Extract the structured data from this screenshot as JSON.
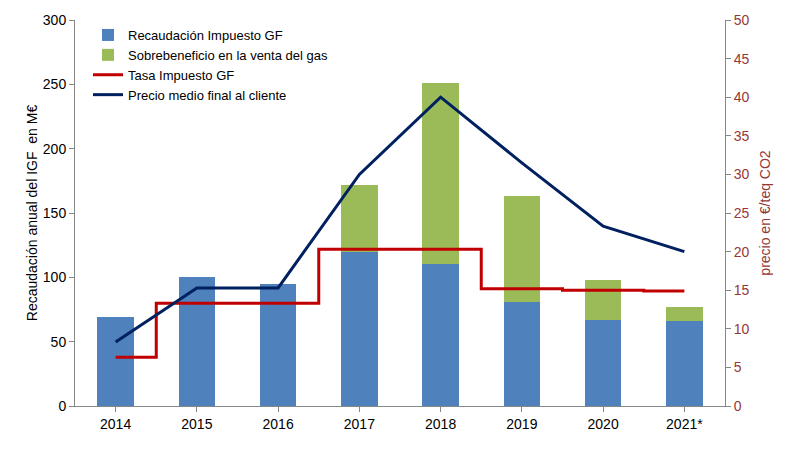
{
  "chart_data": {
    "type": "bar",
    "stacked": true,
    "legend": "upper left",
    "grid": false,
    "categories": [
      "2014",
      "2015",
      "2016",
      "2017",
      "2018",
      "2019",
      "2020",
      "2021*"
    ],
    "y_label": "Recaudación anual del IGF  en M€",
    "y2_label": "precio en €/teq CO2",
    "ylim": [
      0,
      300
    ],
    "yticks": [
      0,
      50,
      100,
      150,
      200,
      250,
      300
    ],
    "y2lim": [
      0,
      50
    ],
    "y2ticks": [
      0,
      5,
      10,
      15,
      20,
      25,
      30,
      35,
      40,
      45,
      50
    ],
    "series": [
      {
        "name": "Recaudación Impuesto GF",
        "type": "bar",
        "color": "#4f81bd",
        "values": [
          69,
          100,
          95,
          120,
          110,
          81,
          67,
          66
        ]
      },
      {
        "name": "Sobrebeneficio en la venta del gas",
        "type": "bar",
        "color": "#9bbb59",
        "values": [
          null,
          null,
          null,
          52,
          141,
          82,
          31,
          11
        ]
      },
      {
        "name": "Tasa Impuesto GF",
        "type": "line",
        "axis": "y2",
        "color": "#c00000",
        "line_style": "step",
        "values": [
          6.3,
          13.3,
          13.3,
          20.3,
          20.3,
          15.2,
          15.0,
          14.9
        ]
      },
      {
        "name": "Precio medio final al cliente",
        "type": "line",
        "axis": "y2",
        "color": "#002060",
        "line_style": "solid",
        "values": [
          8.3,
          15.3,
          15.3,
          30,
          40,
          31.5,
          23.3,
          20
        ]
      }
    ]
  }
}
